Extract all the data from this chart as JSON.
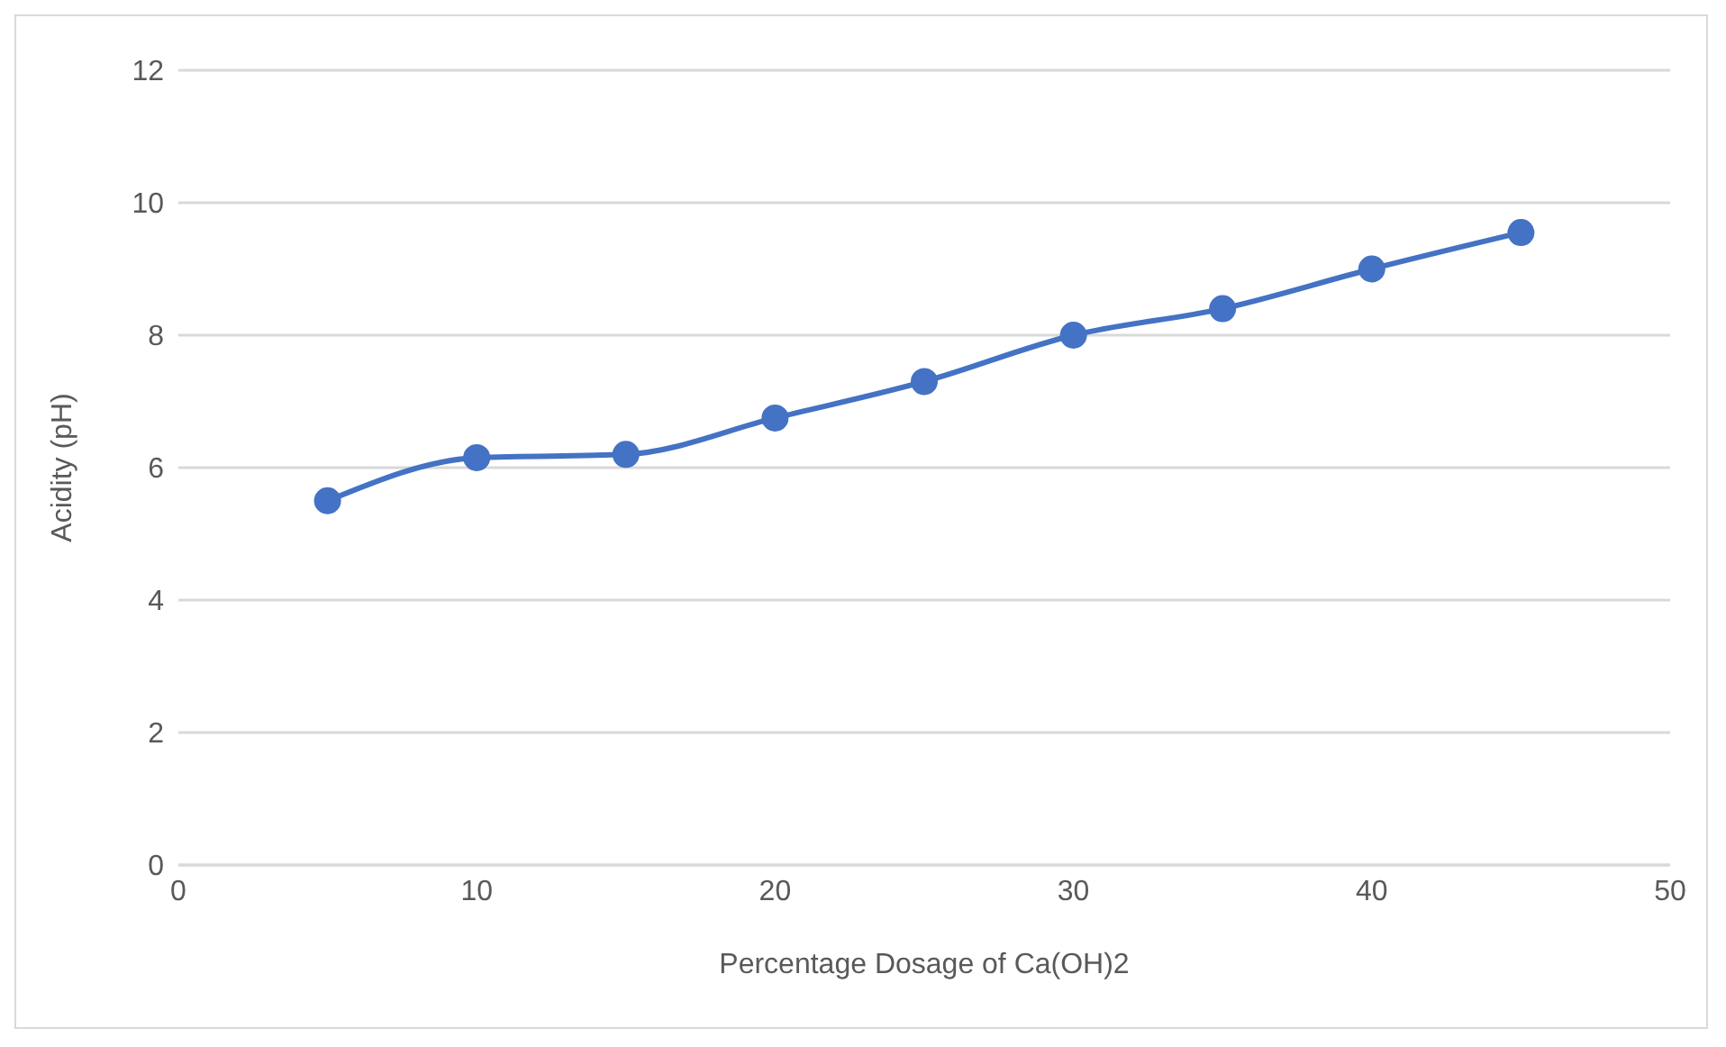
{
  "chart_data": {
    "type": "line",
    "xlabel": "Percentage Dosage of Ca(OH)2",
    "ylabel": "Acidity (pH)",
    "x": [
      5,
      10,
      15,
      20,
      25,
      30,
      35,
      40,
      45
    ],
    "series": [
      {
        "color": "#4472c4",
        "values": [
          5.5,
          6.15,
          6.2,
          6.75,
          7.3,
          8.0,
          8.4,
          9.0,
          9.55
        ]
      }
    ],
    "xlim": [
      0,
      50
    ],
    "xticks": [
      0,
      10,
      20,
      30,
      40,
      50
    ],
    "ylim": [
      0,
      12
    ],
    "yticks": [
      0,
      2,
      4,
      6,
      8,
      10,
      12
    ],
    "grid": "y",
    "marker": "circle",
    "line_style": "solid"
  }
}
